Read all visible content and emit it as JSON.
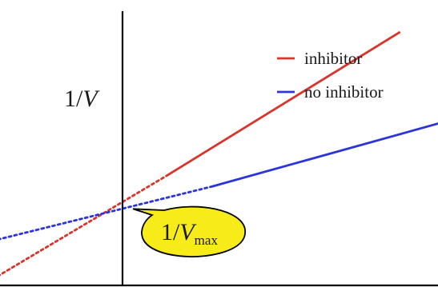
{
  "chart_data": {
    "type": "line",
    "title": "",
    "xlabel": "",
    "ylabel_prefix": "1/",
    "ylabel_var": "V",
    "annotation": {
      "prefix": "1/",
      "var": "V",
      "sub": "max",
      "points_to": [
        0,
        1
      ]
    },
    "xlim": [
      -1.5,
      1.25
    ],
    "ylim": [
      -1.1,
      3.4
    ],
    "grid": false,
    "legend": {
      "position": "top-right"
    },
    "series": [
      {
        "name": "inhibitor",
        "color": "#d9342b",
        "solid": [
          [
            0.18,
            1.38
          ],
          [
            1.12,
            3.18
          ]
        ],
        "dashed": [
          [
            -0.62,
            -0.1
          ],
          [
            0.18,
            1.38
          ]
        ]
      },
      {
        "name": "no inhibitor",
        "color": "#2b35d9",
        "solid": [
          [
            0.36,
            1.24
          ],
          [
            1.85,
            2.53
          ]
        ],
        "dashed": [
          [
            -1.38,
            -0.1
          ],
          [
            0.36,
            1.24
          ]
        ]
      }
    ]
  }
}
